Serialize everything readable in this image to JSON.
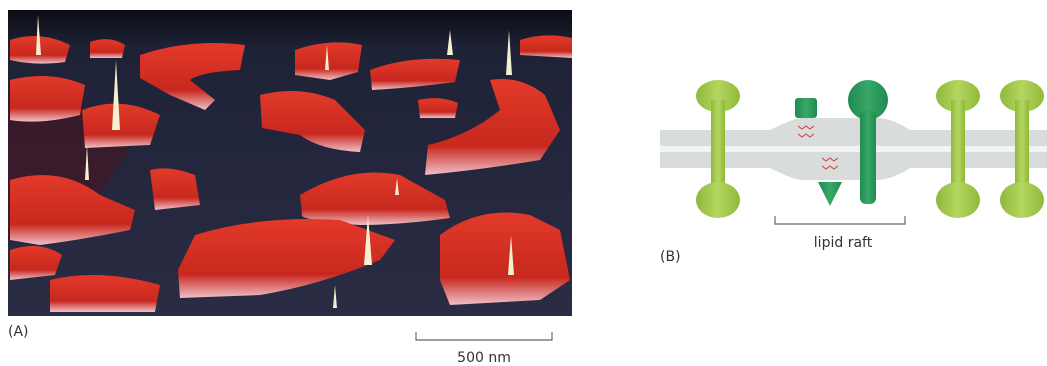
{
  "panel_a": {
    "label": "(A)",
    "scale_bar": "500 nm"
  },
  "panel_b": {
    "label": "(B)",
    "annotation": "lipid raft"
  }
}
